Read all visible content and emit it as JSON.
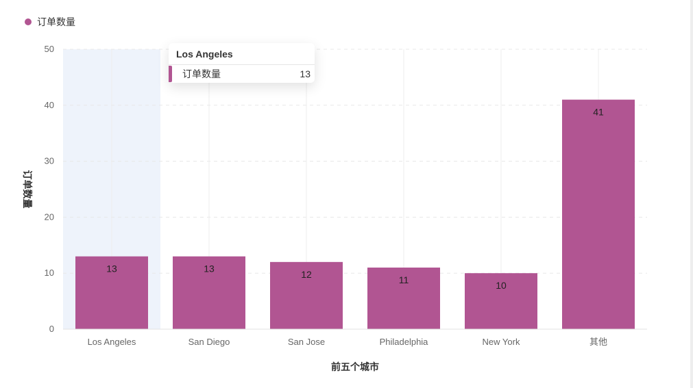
{
  "legend": {
    "label": "订单数量"
  },
  "colors": {
    "bar": "#b15592",
    "highlight": "#eef3fb",
    "grid": "#e8e8e8"
  },
  "tooltip": {
    "title": "Los Angeles",
    "series_name": "订单数量",
    "value": "13"
  },
  "chart_data": {
    "type": "bar",
    "categories": [
      "Los Angeles",
      "San Diego",
      "San Jose",
      "Philadelphia",
      "New York",
      "其他"
    ],
    "series": [
      {
        "name": "订单数量",
        "values": [
          13,
          13,
          12,
          11,
          10,
          41
        ]
      }
    ],
    "xlabel": "前五个城市",
    "ylabel": "订单数量",
    "ylim": [
      0,
      50
    ],
    "yticks": [
      "0",
      "10",
      "20",
      "30",
      "40",
      "50"
    ],
    "grid": true,
    "legend_position": "top-left",
    "highlighted_category": "Los Angeles"
  }
}
